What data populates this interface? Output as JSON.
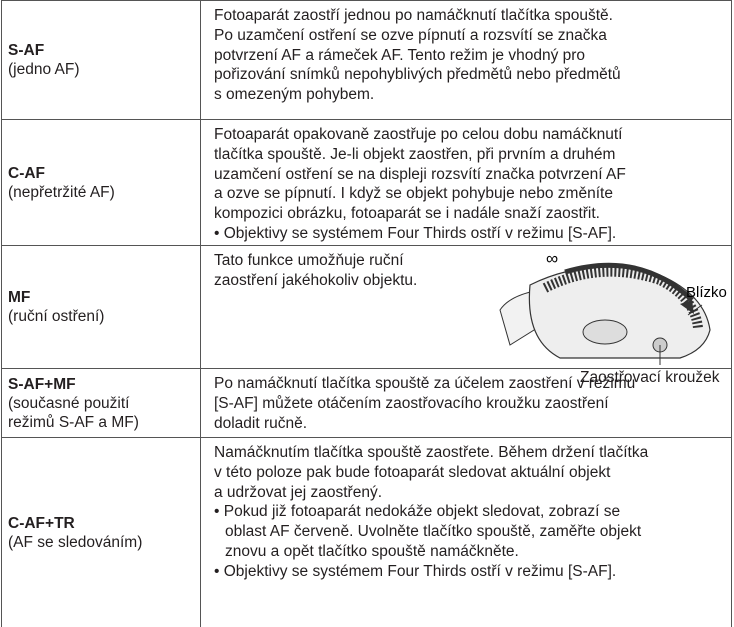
{
  "rows": [
    {
      "mode": "S-AF",
      "description": [
        "(jedno AF)"
      ],
      "text": [
        "Fotoaparát zaostří jednou po namáčknutí tlačítka spouště.",
        "Po uzamčení ostření se ozve pípnutí a rozsvítí se značka",
        "potvrzení AF a rámeček AF. Tento režim je vhodný pro",
        "pořizování snímků nepohyblivých předmětů nebo předmětů",
        "s omezeným pohybem."
      ]
    },
    {
      "mode": "C-AF",
      "description": [
        "(nepřetržité AF)"
      ],
      "text": [
        "Fotoaparát opakovaně zaostřuje po celou dobu namáčknutí",
        "tlačítka spouště. Je-li objekt zaostřen, při prvním a druhém",
        "uzamčení ostření se na displeji rozsvítí značka potvrzení AF",
        "a ozve se pípnutí. I když se objekt pohybuje nebo změníte",
        "kompozici obrázku, fotoaparát se i nadále snaží zaostřit.",
        "• Objektivy se systémem Four Thirds ostří v režimu [S-AF]."
      ]
    },
    {
      "mode": "MF",
      "description": [
        "(ruční ostření)"
      ],
      "text": [
        "Tato funkce umožňuje ruční",
        "zaostření jakéhokoliv objektu."
      ]
    },
    {
      "mode": "S-AF+MF",
      "description": [
        "(současné použití",
        "režimů S-AF a MF)"
      ],
      "text": [
        "Po namáčknutí tlačítka spouště za účelem zaostření v režimu",
        "[S-AF] můžete otáčením zaostřovacího kroužku zaostření",
        "doladit ručně."
      ]
    },
    {
      "mode": "C-AF+TR",
      "description": [
        "(AF se sledováním)"
      ],
      "text": [
        "Namáčknutím tlačítka spouště zaostřete. Během držení tlačítka",
        "v této poloze pak bude fotoaparát sledovat aktuální objekt",
        "a udržovat jej zaostřený.",
        "• Pokud již fotoaparát nedokáže objekt sledovat, zobrazí se",
        "oblast AF červeně. Uvolněte tlačítko spouště, zaměřte objekt",
        "znovu a opět tlačítko spouště namáčkněte.",
        "• Objektivy se systémem Four Thirds ostří v režimu [S-AF]."
      ]
    }
  ],
  "figure": {
    "infinity": "∞",
    "near": "Blízko",
    "ring": "Zaostřovací kroužek"
  }
}
